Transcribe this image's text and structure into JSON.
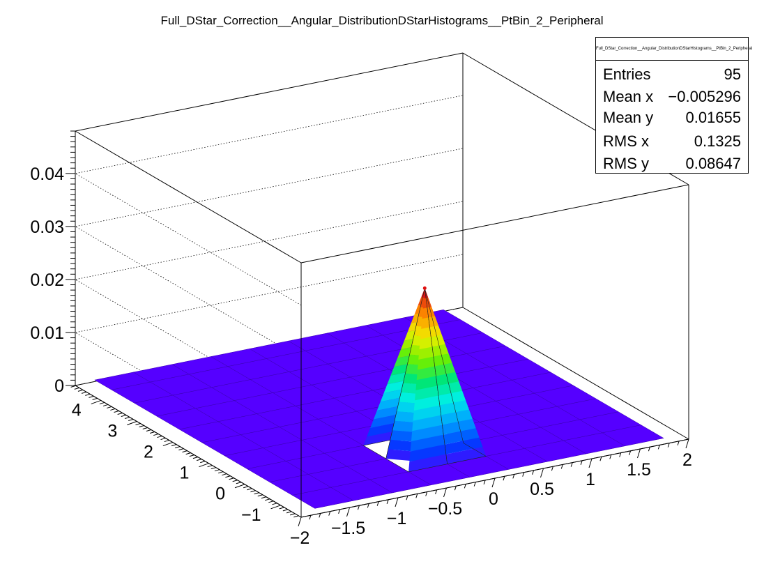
{
  "chart_data": {
    "type": "surface",
    "title": "Full_DStar_Correction__Angular_DistributionDStarHistograms__PtBin_2_Peripheral",
    "x_ticks": [
      "−2",
      "−1.5",
      "−1",
      "−0.5",
      "0",
      "0.5",
      "1",
      "1.5",
      "2"
    ],
    "y_ticks": [
      "−1",
      "0",
      "1",
      "2",
      "3",
      "4"
    ],
    "z_ticks": [
      "0",
      "0.01",
      "0.02",
      "0.03",
      "0.04"
    ],
    "xlim": [
      -2,
      2
    ],
    "ylim": [
      -1.571,
      4.712
    ],
    "zlim": [
      0,
      0.048
    ],
    "grid_x": [
      -1.8,
      -1.4,
      -1.0,
      -0.6,
      -0.2,
      0.2,
      0.6,
      1.0,
      1.4,
      1.8
    ],
    "grid_y": [
      -1.414,
      -0.785,
      -0.157,
      0.471,
      1.1,
      1.728,
      2.356,
      2.985,
      3.613,
      4.241,
      4.712
    ],
    "peak": {
      "x": -0.2,
      "y": -0.157,
      "z": 0.031
    },
    "colors": {
      "surface": "#5500ff",
      "peak_top": "#e01010",
      "axis": "#000000"
    }
  },
  "stats": {
    "title": "Full_DStar_Correction__Angular_DistributionDStarHistograms__PtBin_2_Peripheral",
    "rows": [
      {
        "label": "Entries",
        "value": "95"
      },
      {
        "label": "Mean x",
        "value": "−0.005296"
      },
      {
        "label": "Mean y",
        "value": "0.01655"
      },
      {
        "label": "RMS x",
        "value": "0.1325"
      },
      {
        "label": "RMS y",
        "value": "0.08647"
      }
    ]
  }
}
